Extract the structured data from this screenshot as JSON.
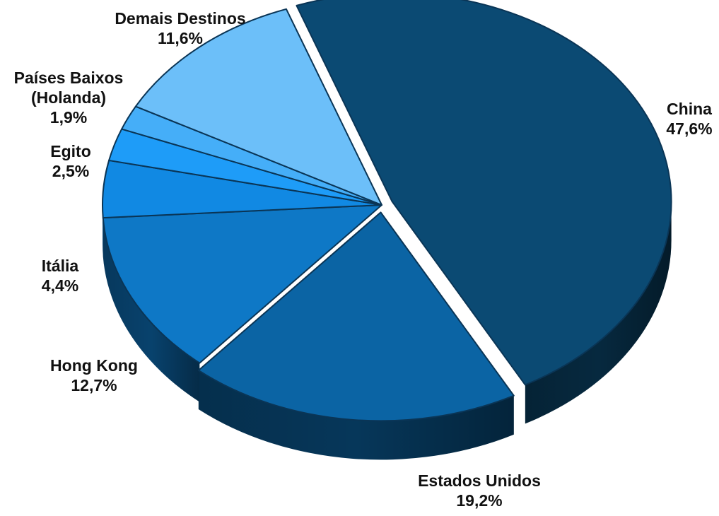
{
  "chart_data": {
    "type": "pie",
    "style": "3d-exploded",
    "slices": [
      {
        "name": "China",
        "value": 47.6,
        "label": "China",
        "pct_label": "47,6%",
        "color": "#0b4a73"
      },
      {
        "name": "Estados Unidos",
        "value": 19.2,
        "label": "Estados Unidos",
        "pct_label": "19,2%",
        "color": "#0b64a4"
      },
      {
        "name": "Hong Kong",
        "value": 12.7,
        "label": "Hong Kong",
        "pct_label": "12,7%",
        "color": "#0e78c6"
      },
      {
        "name": "Itália",
        "value": 4.4,
        "label": "Itália",
        "pct_label": "4,4%",
        "color": "#1189e3"
      },
      {
        "name": "Egito",
        "value": 2.5,
        "label": "Egito",
        "pct_label": "2,5%",
        "color": "#1e9cf8"
      },
      {
        "name": "Países Baixos (Holanda)",
        "value": 1.9,
        "label": "Países Baixos\n(Holanda)",
        "pct_label": "1,9%",
        "color": "#45aef8"
      },
      {
        "name": "Demais Destinos",
        "value": 11.6,
        "label": "Demais Destinos",
        "pct_label": "11,6%",
        "color": "#6cbff9"
      }
    ]
  }
}
